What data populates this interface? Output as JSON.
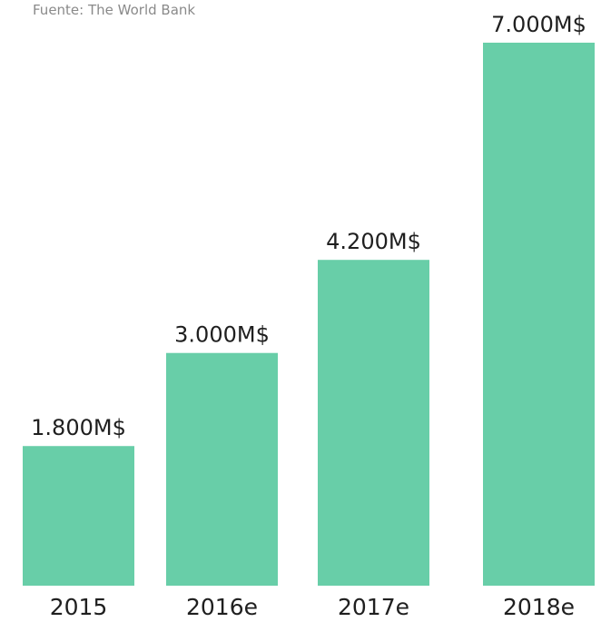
{
  "source": "Fuente: The World Bank",
  "bar_color": "#68CEA8",
  "chart_data": {
    "type": "bar",
    "categories": [
      "2015",
      "2016e",
      "2017e",
      "2018e"
    ],
    "values": [
      1800,
      3000,
      4200,
      7000
    ],
    "data_labels": [
      "1.800M$",
      "3.000M$",
      "4.200M$",
      "7.000M$"
    ],
    "title": "",
    "xlabel": "",
    "ylabel": "",
    "ylim": [
      0,
      7000
    ],
    "grid": false,
    "legend": "none"
  }
}
